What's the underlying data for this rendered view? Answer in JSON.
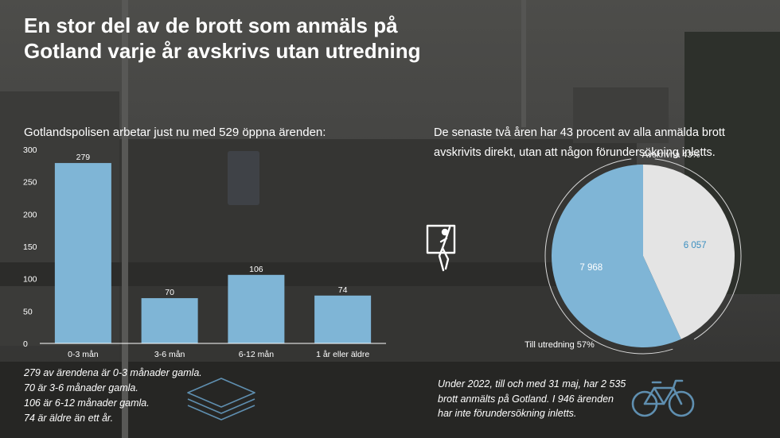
{
  "title_lines": [
    "En stor del av de brott som anmäls på",
    "Gotland varje år avskrivs utan utredning"
  ],
  "bar_section": {
    "heading": "Gotlandspolisen arbetar just nu med 529 öppna ärenden:",
    "notes": [
      "279 av ärendena är 0-3 månader gamla.",
      "70 är 3-6 månader gamla.",
      "106 är 6-12 månader gamla.",
      "74 är äldre än ett år."
    ]
  },
  "pie_section": {
    "heading_lines": [
      "De senaste två åren har 43 procent av alla anmälda brott",
      "avskrivits direkt, utan att någon förundersökning inletts."
    ],
    "note_lines": [
      "Under 2022, till och med 31 maj, har 2 535",
      "brott anmälts på Gotland. I 946 ärenden",
      "har inte förundersökning inletts."
    ]
  },
  "icons": [
    "papers-stack-icon",
    "window-person-icon",
    "bicycle-icon"
  ],
  "colors": {
    "bar": "#7fb5d6",
    "pie_utredning": "#7fb5d6",
    "pie_avskrivna": "#e4e4e4",
    "pie_avskrivna_text": "#3b8fc0",
    "icon_blue": "#5f8fb0"
  },
  "chart_data": [
    {
      "type": "bar",
      "categories": [
        "0-3 mån",
        "3-6 mån",
        "6-12 mån",
        "1 år eller äldre"
      ],
      "values": [
        279,
        70,
        106,
        74
      ],
      "ylim": [
        0,
        300
      ],
      "yticks": [
        0,
        50,
        100,
        150,
        200,
        250,
        300
      ],
      "grid": false,
      "data_labels": true
    },
    {
      "type": "pie",
      "slices": [
        {
          "label": "Avskrivna 43%",
          "value": 6057,
          "value_label": "6 057"
        },
        {
          "label": "Till utredning 57%",
          "value": 7968,
          "value_label": "7 968"
        }
      ]
    }
  ]
}
